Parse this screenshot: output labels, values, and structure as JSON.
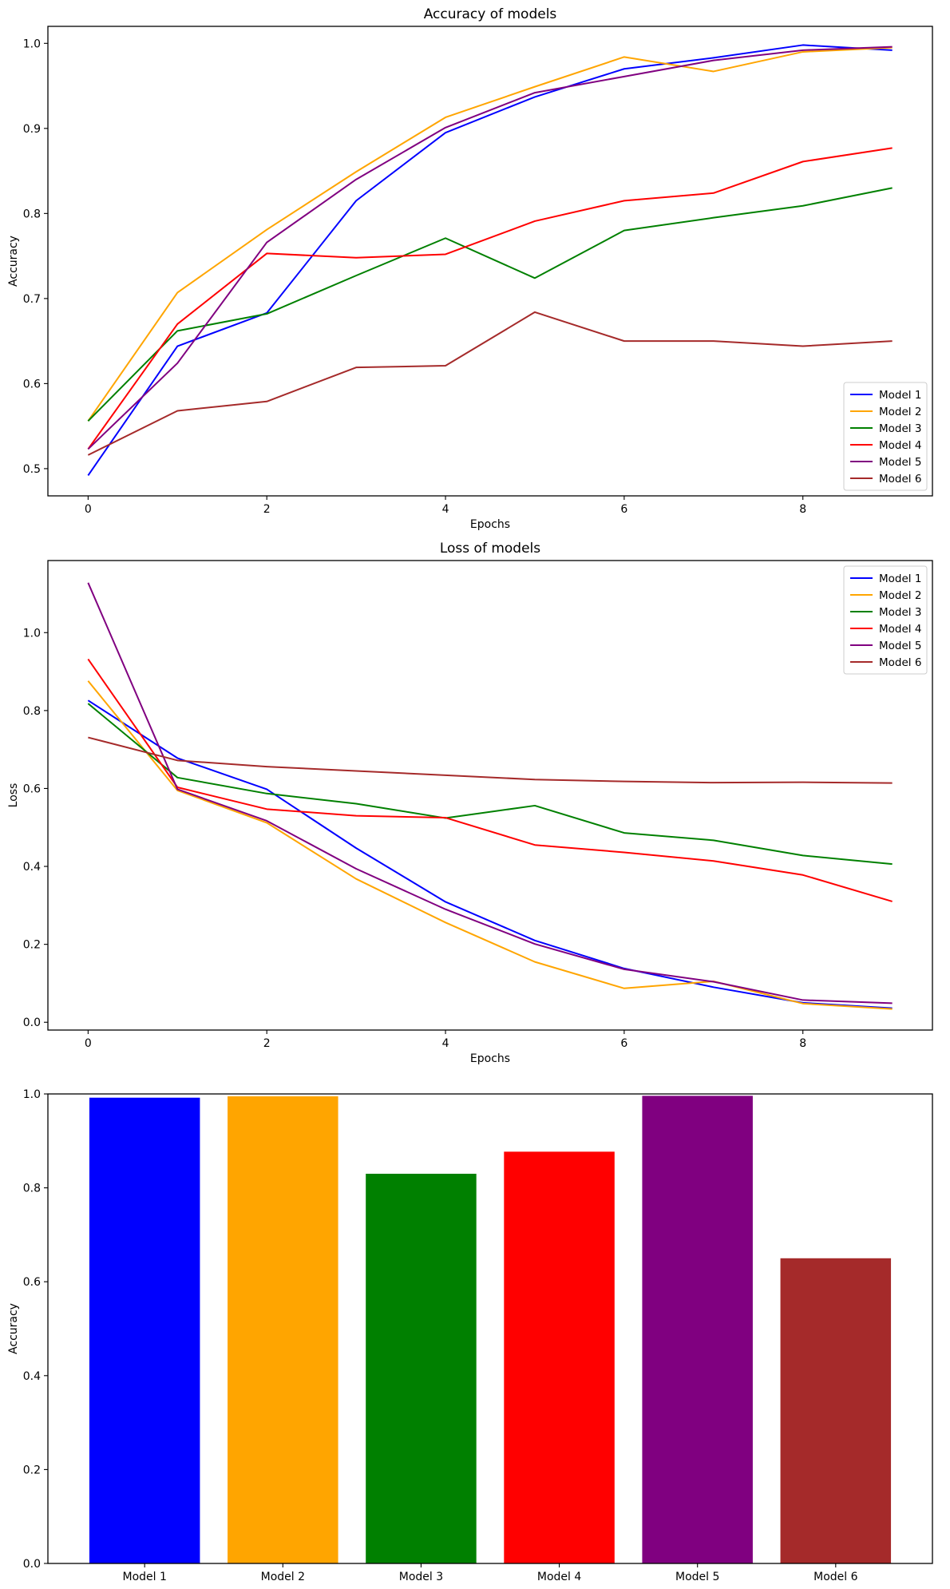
{
  "chart_data": [
    {
      "type": "line",
      "title": "Accuracy of models",
      "xlabel": "Epochs",
      "ylabel": "Accuracy",
      "xlim": [
        -0.45,
        9.45
      ],
      "ylim": [
        0.468,
        1.02
      ],
      "xticks": [
        0,
        2,
        4,
        6,
        8
      ],
      "yticks": [
        0.5,
        0.6,
        0.7,
        0.8,
        0.9,
        1.0
      ],
      "ytick_decimals": 1,
      "legend_loc": "lower right",
      "x": [
        0,
        1,
        2,
        3,
        4,
        5,
        6,
        7,
        8,
        9
      ],
      "series": [
        {
          "name": "Model 1",
          "color": "#0000ff",
          "values": [
            0.492,
            0.644,
            0.683,
            0.815,
            0.895,
            0.937,
            0.97,
            0.983,
            0.998,
            0.992
          ]
        },
        {
          "name": "Model 2",
          "color": "#ffa500",
          "values": [
            0.556,
            0.707,
            0.781,
            0.849,
            0.913,
            0.949,
            0.984,
            0.967,
            0.99,
            0.995
          ]
        },
        {
          "name": "Model 3",
          "color": "#008000",
          "values": [
            0.556,
            0.662,
            0.682,
            0.727,
            0.771,
            0.724,
            0.78,
            0.795,
            0.809,
            0.83
          ]
        },
        {
          "name": "Model 4",
          "color": "#ff0000",
          "values": [
            0.523,
            0.67,
            0.753,
            0.748,
            0.752,
            0.791,
            0.815,
            0.824,
            0.861,
            0.877
          ]
        },
        {
          "name": "Model 5",
          "color": "#800080",
          "values": [
            0.523,
            0.624,
            0.766,
            0.84,
            0.901,
            0.942,
            0.961,
            0.98,
            0.992,
            0.996
          ]
        },
        {
          "name": "Model 6",
          "color": "#a52a2a",
          "values": [
            0.516,
            0.568,
            0.579,
            0.619,
            0.621,
            0.684,
            0.65,
            0.65,
            0.644,
            0.65
          ]
        }
      ]
    },
    {
      "type": "line",
      "title": "Loss of models",
      "xlabel": "Epochs",
      "ylabel": "Loss",
      "xlim": [
        -0.45,
        9.45
      ],
      "ylim": [
        -0.02,
        1.185
      ],
      "xticks": [
        0,
        2,
        4,
        6,
        8
      ],
      "yticks": [
        0.0,
        0.2,
        0.4,
        0.6,
        0.8,
        1.0
      ],
      "ytick_decimals": 1,
      "legend_loc": "upper right",
      "x": [
        0,
        1,
        2,
        3,
        4,
        5,
        6,
        7,
        8,
        9
      ],
      "series": [
        {
          "name": "Model 1",
          "color": "#0000ff",
          "values": [
            0.826,
            0.678,
            0.598,
            0.447,
            0.309,
            0.21,
            0.138,
            0.09,
            0.05,
            0.036
          ]
        },
        {
          "name": "Model 2",
          "color": "#ffa500",
          "values": [
            0.876,
            0.595,
            0.512,
            0.368,
            0.256,
            0.155,
            0.087,
            0.105,
            0.048,
            0.034
          ]
        },
        {
          "name": "Model 3",
          "color": "#008000",
          "values": [
            0.818,
            0.628,
            0.587,
            0.561,
            0.524,
            0.556,
            0.486,
            0.467,
            0.428,
            0.406
          ]
        },
        {
          "name": "Model 4",
          "color": "#ff0000",
          "values": [
            0.932,
            0.603,
            0.547,
            0.53,
            0.525,
            0.455,
            0.436,
            0.414,
            0.378,
            0.31
          ]
        },
        {
          "name": "Model 5",
          "color": "#800080",
          "values": [
            1.128,
            0.598,
            0.517,
            0.394,
            0.29,
            0.201,
            0.136,
            0.104,
            0.057,
            0.049
          ]
        },
        {
          "name": "Model 6",
          "color": "#a52a2a",
          "values": [
            0.731,
            0.672,
            0.656,
            0.645,
            0.634,
            0.623,
            0.618,
            0.615,
            0.616,
            0.614
          ]
        }
      ]
    },
    {
      "type": "bar",
      "title": "",
      "xlabel": "",
      "ylabel": "Accuracy",
      "ylim": [
        0,
        1.0
      ],
      "yticks": [
        0.0,
        0.2,
        0.4,
        0.6,
        0.8,
        1.0
      ],
      "ytick_decimals": 1,
      "categories": [
        "Model 1",
        "Model 2",
        "Model 3",
        "Model 4",
        "Model 5",
        "Model 6"
      ],
      "values": [
        0.992,
        0.995,
        0.83,
        0.877,
        0.996,
        0.65
      ],
      "colors": [
        "#0000ff",
        "#ffa500",
        "#008000",
        "#ff0000",
        "#800080",
        "#a52a2a"
      ]
    }
  ]
}
